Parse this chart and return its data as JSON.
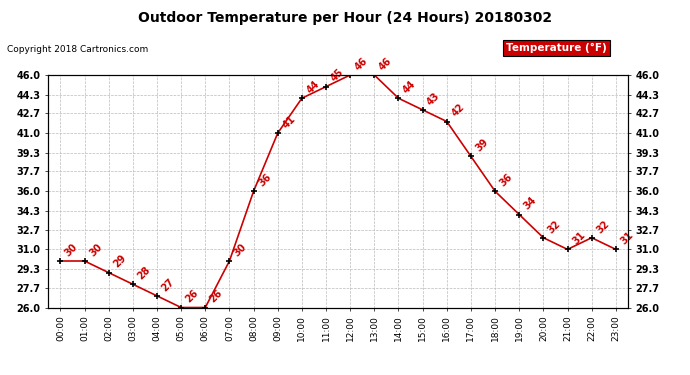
{
  "title": "Outdoor Temperature per Hour (24 Hours) 20180302",
  "copyright_text": "Copyright 2018 Cartronics.com",
  "legend_label": "Temperature (°F)",
  "hours": [
    0,
    1,
    2,
    3,
    4,
    5,
    6,
    7,
    8,
    9,
    10,
    11,
    12,
    13,
    14,
    15,
    16,
    17,
    18,
    19,
    20,
    21,
    22,
    23
  ],
  "temps": [
    30,
    30,
    29,
    28,
    27,
    26,
    26,
    30,
    36,
    41,
    44,
    45,
    46,
    46,
    44,
    43,
    42,
    39,
    36,
    34,
    32,
    31,
    32,
    31
  ],
  "x_labels": [
    "00:00",
    "01:00",
    "02:00",
    "03:00",
    "04:00",
    "05:00",
    "06:00",
    "07:00",
    "08:00",
    "09:00",
    "10:00",
    "11:00",
    "12:00",
    "13:00",
    "14:00",
    "15:00",
    "16:00",
    "17:00",
    "18:00",
    "19:00",
    "20:00",
    "21:00",
    "22:00",
    "23:00"
  ],
  "ylim": [
    26.0,
    46.0
  ],
  "yticks": [
    26.0,
    27.7,
    29.3,
    31.0,
    32.7,
    34.3,
    36.0,
    37.7,
    39.3,
    41.0,
    42.7,
    44.3,
    46.0
  ],
  "line_color": "#cc0000",
  "marker_color": "#000000",
  "label_color": "#cc0000",
  "legend_bg": "#cc0000",
  "legend_text_color": "#ffffff",
  "bg_color": "#ffffff",
  "grid_color": "#bbbbbb",
  "title_color": "#000000",
  "copyright_color": "#000000",
  "figsize": [
    6.9,
    3.75
  ],
  "dpi": 100
}
